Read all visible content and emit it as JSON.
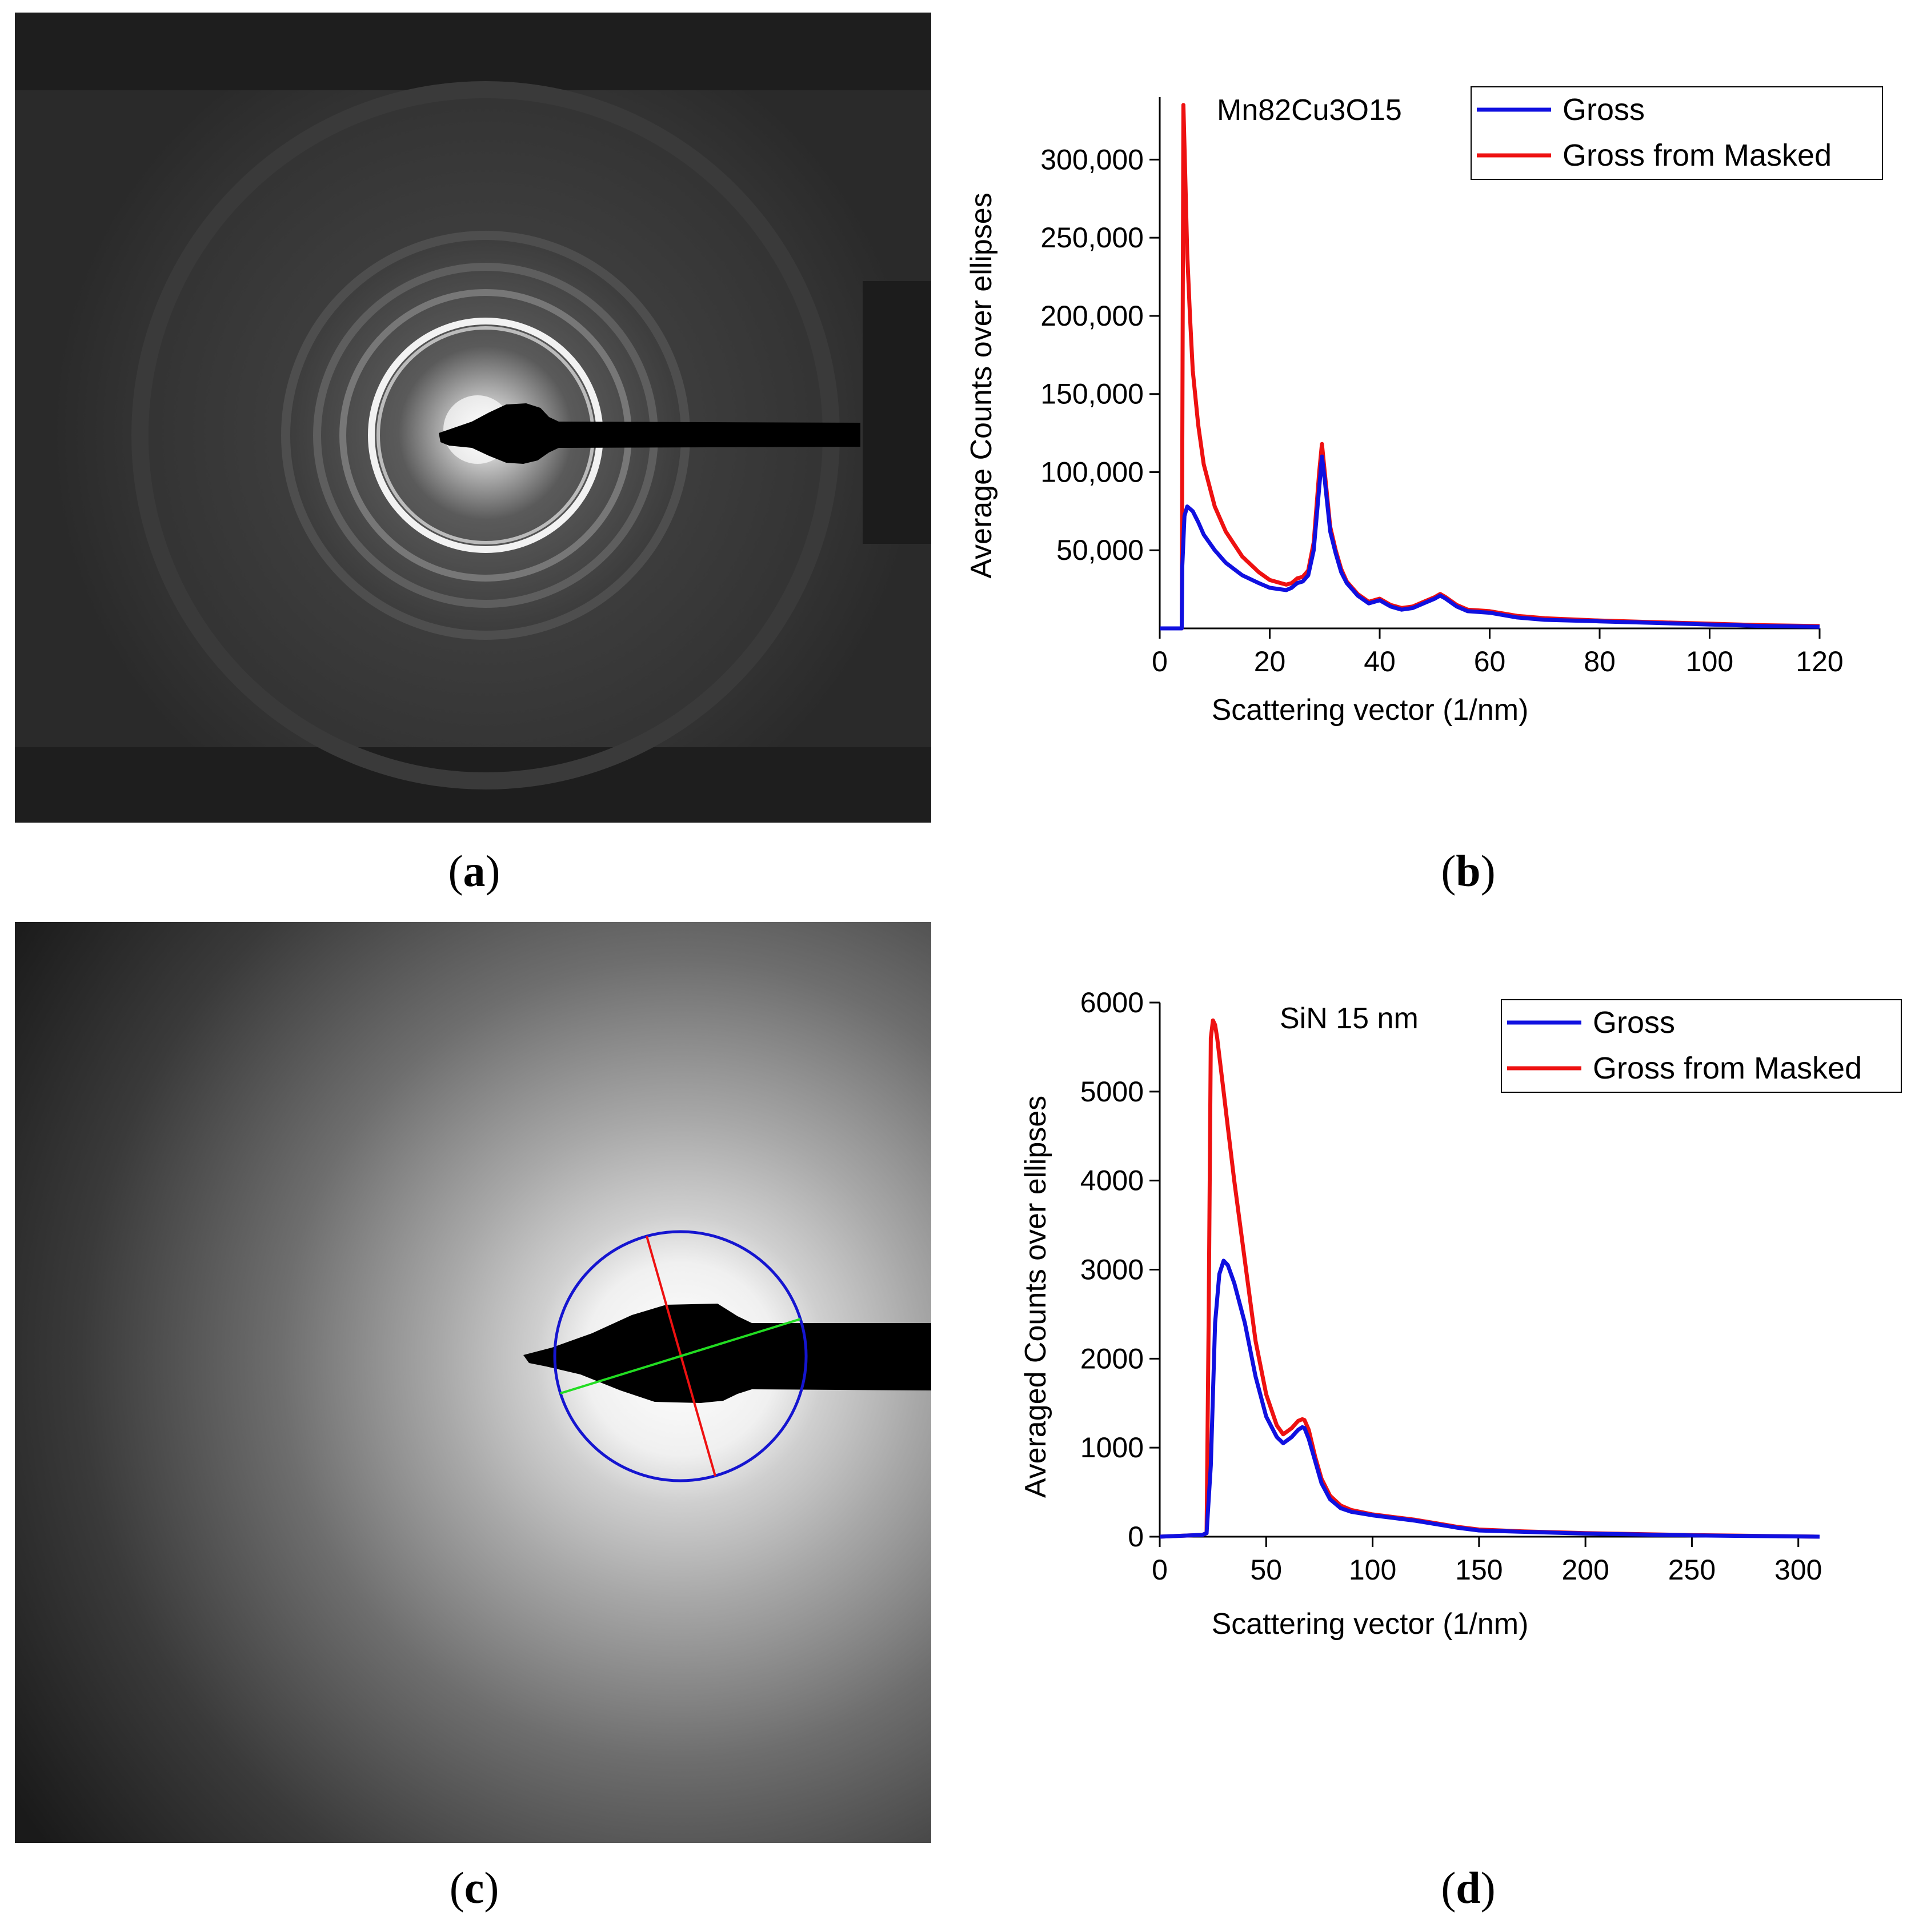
{
  "captions": {
    "a": "a",
    "b": "b",
    "c": "c",
    "d": "d"
  },
  "chart_data": [
    {
      "id": "b",
      "type": "line",
      "annotation": "Mn82Cu3O15",
      "xlabel": "Scattering vector (1/nm)",
      "ylabel": "Average Counts over ellipses",
      "xlim": [
        0,
        120
      ],
      "ylim": [
        0,
        340000
      ],
      "xticks": [
        0,
        20,
        40,
        60,
        80,
        100,
        120
      ],
      "yticks": [
        50000,
        100000,
        150000,
        200000,
        250000,
        300000
      ],
      "ytick_labels": [
        "50,000",
        "100,000",
        "150,000",
        "200,000",
        "250,000",
        "300,000"
      ],
      "legend_position": "top-right",
      "series": [
        {
          "name": "Gross",
          "color": "#1010e0",
          "x": [
            0,
            4,
            4.1,
            4.5,
            5,
            6,
            7,
            8,
            10,
            12,
            15,
            18,
            20,
            22,
            23,
            24,
            25,
            26,
            27,
            28,
            29,
            29.5,
            30,
            31,
            32,
            33,
            34,
            35,
            36,
            38,
            40,
            42,
            44,
            46,
            48,
            50,
            51,
            52,
            54,
            56,
            60,
            65,
            70,
            80,
            90,
            100,
            110,
            120
          ],
          "y": [
            0,
            0,
            40000,
            72000,
            78000,
            75000,
            68000,
            60000,
            50000,
            42000,
            34000,
            29000,
            26000,
            25000,
            24500,
            26000,
            29000,
            30000,
            34000,
            50000,
            90000,
            110000,
            95000,
            62000,
            48000,
            36000,
            29000,
            25000,
            21000,
            16000,
            18000,
            14000,
            12000,
            13000,
            16000,
            19000,
            21000,
            19000,
            14000,
            11000,
            10000,
            7000,
            5500,
            4500,
            3500,
            2500,
            1500,
            1000
          ]
        },
        {
          "name": "Gross from Masked",
          "color": "#ee1111",
          "x": [
            0,
            4,
            4.1,
            4.3,
            4.6,
            5,
            5.5,
            6,
            7,
            8,
            10,
            12,
            15,
            18,
            20,
            22,
            23,
            24,
            25,
            26,
            27,
            28,
            29,
            29.5,
            30,
            31,
            32,
            33,
            34,
            35,
            36,
            38,
            40,
            42,
            44,
            46,
            48,
            50,
            51,
            52,
            54,
            56,
            60,
            65,
            70,
            80,
            90,
            100,
            110,
            120
          ],
          "y": [
            0,
            0,
            120000,
            335000,
            295000,
            240000,
            200000,
            165000,
            130000,
            105000,
            78000,
            62000,
            46000,
            36000,
            31000,
            29000,
            28000,
            29000,
            32000,
            33000,
            37000,
            55000,
            100000,
            118000,
            100000,
            65000,
            50000,
            38000,
            30000,
            26000,
            22000,
            17000,
            19000,
            15000,
            13000,
            14000,
            17000,
            20000,
            22000,
            20000,
            15000,
            12000,
            11000,
            8000,
            6500,
            5000,
            4000,
            3000,
            2000,
            1500
          ]
        }
      ]
    },
    {
      "id": "d",
      "type": "line",
      "annotation": "SiN 15 nm",
      "xlabel": "Scattering vector (1/nm)",
      "ylabel": "Averaged Counts over ellipses",
      "xlim": [
        0,
        310
      ],
      "ylim": [
        0,
        6000
      ],
      "xticks": [
        0,
        50,
        100,
        150,
        200,
        250,
        300
      ],
      "yticks": [
        0,
        1000,
        2000,
        3000,
        4000,
        5000,
        6000
      ],
      "ytick_labels": [
        "0",
        "1000",
        "2000",
        "3000",
        "4000",
        "5000",
        "6000"
      ],
      "legend_position": "top-right",
      "series": [
        {
          "name": "Gross",
          "color": "#1010e0",
          "x": [
            0,
            20,
            22,
            24,
            26,
            28,
            30,
            32,
            35,
            40,
            45,
            50,
            55,
            58,
            62,
            65,
            67,
            68,
            70,
            73,
            76,
            80,
            85,
            90,
            100,
            110,
            120,
            130,
            140,
            150,
            170,
            200,
            250,
            310
          ],
          "y": [
            0,
            20,
            40,
            800,
            2400,
            2950,
            3100,
            3050,
            2850,
            2400,
            1800,
            1350,
            1120,
            1050,
            1120,
            1200,
            1230,
            1220,
            1100,
            850,
            600,
            420,
            320,
            280,
            240,
            210,
            180,
            140,
            100,
            70,
            55,
            35,
            15,
            0
          ]
        },
        {
          "name": "Gross from Masked",
          "color": "#ee1111",
          "x": [
            0,
            20,
            22,
            23,
            24,
            25,
            26,
            27,
            28,
            30,
            32,
            35,
            40,
            45,
            50,
            55,
            58,
            62,
            65,
            67,
            68,
            70,
            73,
            76,
            80,
            85,
            90,
            100,
            110,
            120,
            130,
            140,
            150,
            170,
            200,
            250,
            310
          ],
          "y": [
            0,
            20,
            40,
            2500,
            5600,
            5800,
            5750,
            5600,
            5400,
            5000,
            4600,
            4000,
            3100,
            2200,
            1600,
            1250,
            1150,
            1220,
            1300,
            1320,
            1310,
            1200,
            900,
            650,
            460,
            350,
            300,
            250,
            220,
            190,
            150,
            110,
            80,
            60,
            40,
            18,
            0
          ]
        }
      ]
    }
  ]
}
